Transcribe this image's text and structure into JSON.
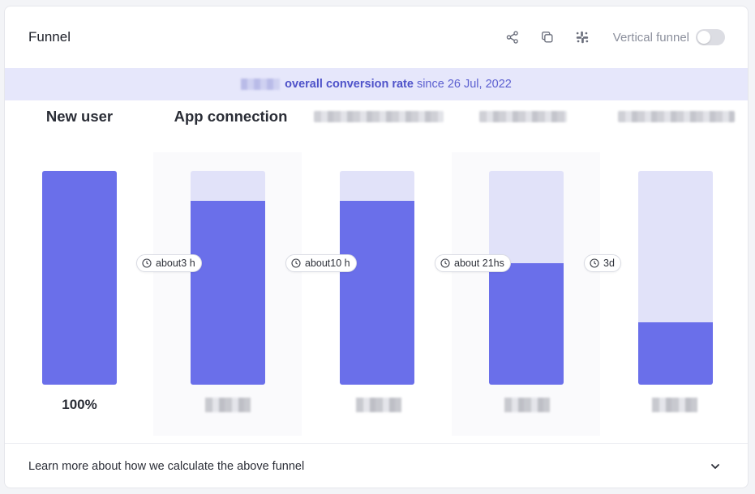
{
  "header": {
    "title": "Funnel",
    "toggle_label": "Vertical funnel",
    "icons": [
      "share-icon",
      "copy-icon",
      "slack-icon"
    ]
  },
  "banner": {
    "strong": "overall conversion rate",
    "since": "since 26 Jul, 2022"
  },
  "steps": [
    {
      "label": "New user",
      "percent_label": "100%",
      "conversion": 1.0
    },
    {
      "label": "App connection",
      "conversion": 0.86
    },
    {
      "label": "",
      "conversion": 0.86
    },
    {
      "label": "",
      "conversion": 0.57
    },
    {
      "label": "",
      "conversion": 0.29
    }
  ],
  "times": [
    "about3 h",
    "about10 h",
    "about 21hs",
    "3d"
  ],
  "footer": {
    "text": "Learn more about how we calculate the above funnel"
  },
  "colors": {
    "accent": "#6a6fea",
    "accent_light": "#e1e2f9",
    "banner_bg": "#e6e7fb"
  }
}
